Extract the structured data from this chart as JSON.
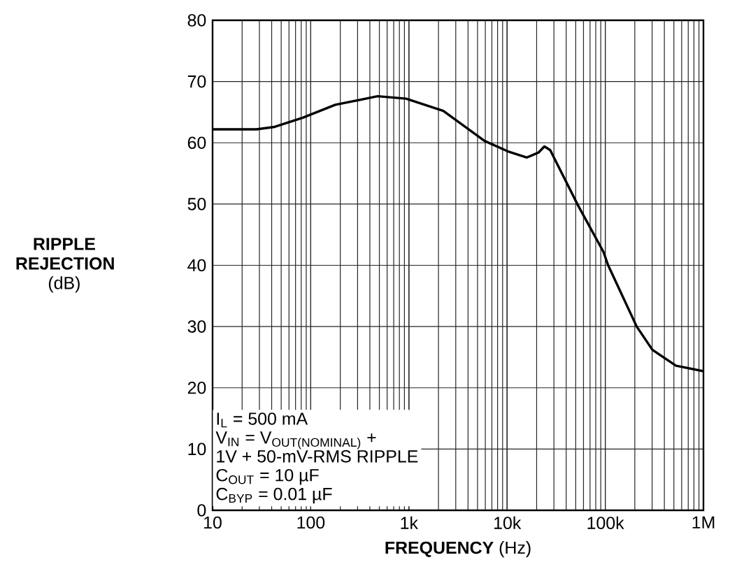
{
  "chart_data": {
    "type": "line",
    "xlabel": "**FREQUENCY** (Hz)",
    "ylabel": "**RIPPLE REJECTION** (dB)",
    "x": [
      10,
      28,
      43,
      83,
      178,
      480,
      935,
      2240,
      5900,
      10200,
      15900,
      20900,
      24000,
      27500,
      52700,
      95800,
      107000,
      209000,
      302000,
      525000,
      1000000
    ],
    "values": [
      62.2,
      62.2,
      62.6,
      64.1,
      66.2,
      67.6,
      67.2,
      65.2,
      60.3,
      58.6,
      57.6,
      58.4,
      59.4,
      58.8,
      49.8,
      42.2,
      40,
      30,
      26.2,
      23.6,
      22.7
    ],
    "color": "#000000",
    "log": "x",
    "grid": true,
    "marker": "none",
    "xlim": [
      10,
      1000000
    ],
    "ylim": [
      0,
      80
    ],
    "xticks": [
      10,
      100,
      {
        "value": 1000,
        "label": "1k"
      },
      {
        "value": 10000,
        "label": "10k"
      },
      {
        "value": 100000,
        "label": "100k"
      },
      {
        "value": 1000000,
        "label": "1M"
      }
    ],
    "yticks": [
      0,
      10,
      20,
      30,
      40,
      50,
      60,
      70,
      80
    ],
    "annotations": [
      "\\text{I}_{\\text{L}}\\text{ = 500 mA}",
      "\\text{V}_{\\text{IN}}\\text{ = V}_{\\text{OUT(NOMINAL)}}\\text{ +}",
      "\\text{1V + 50-mV-RMS RIPPLE}",
      "\\text{C}_{\\text{OUT}}\\text{ = 10 µF}",
      "\\text{C}_{\\text{BYP}}\\text{ = 0.01 µF}"
    ]
  }
}
